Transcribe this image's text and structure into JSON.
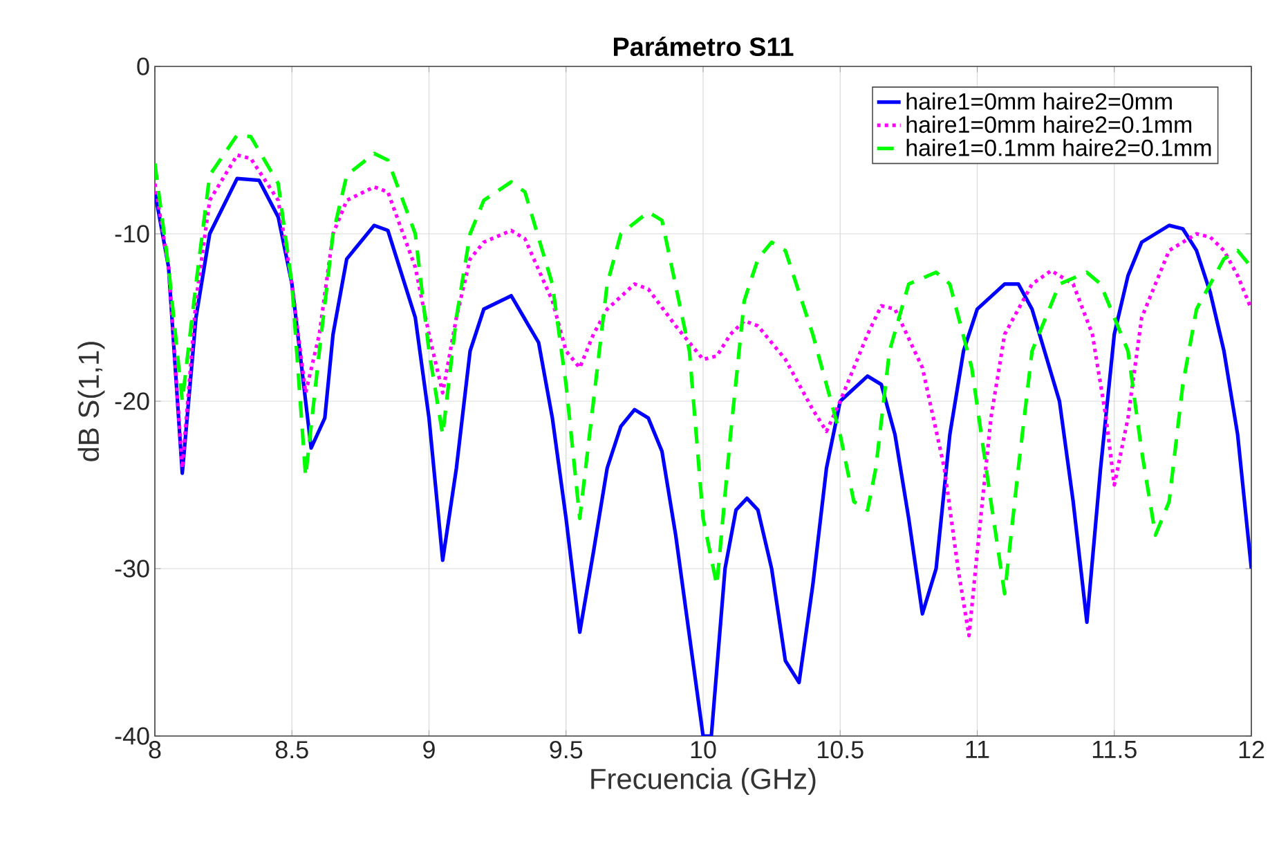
{
  "chart_data": {
    "type": "line",
    "title": "Parámetro S11",
    "xlabel": "Frecuencia (GHz)",
    "ylabel": "dB S(1,1)",
    "xlim": [
      8,
      12
    ],
    "ylim": [
      -40,
      0
    ],
    "xticks": [
      8,
      8.5,
      9,
      9.5,
      10,
      10.5,
      11,
      11.5,
      12
    ],
    "yticks": [
      -40,
      -30,
      -20,
      -10,
      0
    ],
    "grid": true,
    "legend": "top right",
    "series": [
      {
        "name": "haire1=0mm haire2=0mm",
        "color": "#0000ff",
        "line_style": "solid",
        "x": [
          8.0,
          8.05,
          8.1,
          8.15,
          8.2,
          8.3,
          8.38,
          8.45,
          8.5,
          8.55,
          8.57,
          8.62,
          8.65,
          8.7,
          8.8,
          8.85,
          8.95,
          9.0,
          9.05,
          9.1,
          9.15,
          9.2,
          9.3,
          9.4,
          9.45,
          9.5,
          9.55,
          9.6,
          9.65,
          9.7,
          9.75,
          9.8,
          9.85,
          9.9,
          9.95,
          10.0,
          10.03,
          10.08,
          10.12,
          10.16,
          10.2,
          10.25,
          10.3,
          10.35,
          10.4,
          10.45,
          10.5,
          10.6,
          10.65,
          10.7,
          10.75,
          10.8,
          10.85,
          10.9,
          10.95,
          11.0,
          11.1,
          11.15,
          11.2,
          11.3,
          11.35,
          11.4,
          11.45,
          11.5,
          11.55,
          11.6,
          11.7,
          11.75,
          11.8,
          11.85,
          11.9,
          11.95,
          12.0
        ],
        "values": [
          -7.5,
          -12,
          -24.3,
          -15,
          -10,
          -6.7,
          -6.8,
          -9,
          -13,
          -20,
          -22.8,
          -21,
          -16,
          -11.5,
          -9.5,
          -9.8,
          -15,
          -21,
          -29.5,
          -24,
          -17,
          -14.5,
          -13.7,
          -16.5,
          -21,
          -27,
          -33.8,
          -29,
          -24,
          -21.5,
          -20.5,
          -21,
          -23,
          -28,
          -34,
          -40,
          -40,
          -30,
          -26.5,
          -25.8,
          -26.5,
          -30,
          -35.5,
          -36.8,
          -31,
          -24,
          -20,
          -18.5,
          -19,
          -22,
          -27,
          -32.7,
          -30,
          -22,
          -17,
          -14.5,
          -13,
          -13,
          -14.5,
          -20,
          -26,
          -33.2,
          -24,
          -16,
          -12.5,
          -10.5,
          -9.5,
          -9.7,
          -11,
          -13.5,
          -17,
          -22,
          -30
        ]
      },
      {
        "name": "haire1=0mm haire2=0.1mm",
        "color": "#ff00ff",
        "line_style": "dotted",
        "x": [
          8.0,
          8.05,
          8.1,
          8.15,
          8.2,
          8.3,
          8.35,
          8.45,
          8.5,
          8.55,
          8.6,
          8.65,
          8.7,
          8.8,
          8.85,
          8.95,
          9.0,
          9.05,
          9.1,
          9.15,
          9.2,
          9.3,
          9.35,
          9.45,
          9.5,
          9.55,
          9.6,
          9.65,
          9.75,
          9.8,
          9.9,
          10.0,
          10.05,
          10.1,
          10.15,
          10.2,
          10.3,
          10.4,
          10.45,
          10.5,
          10.6,
          10.65,
          10.7,
          10.8,
          10.88,
          10.93,
          10.97,
          11.0,
          11.05,
          11.1,
          11.2,
          11.27,
          11.35,
          11.42,
          11.47,
          11.5,
          11.55,
          11.6,
          11.7,
          11.8,
          11.85,
          11.9,
          11.95,
          12.0
        ],
        "values": [
          -7,
          -12,
          -24,
          -14,
          -8,
          -5.3,
          -5.5,
          -8,
          -13,
          -19.5,
          -16,
          -10,
          -8,
          -7.2,
          -7.5,
          -12,
          -16,
          -19.5,
          -15,
          -11.5,
          -10.5,
          -9.8,
          -10.3,
          -14,
          -17,
          -18,
          -16,
          -14.5,
          -13,
          -13.3,
          -15.5,
          -17.5,
          -17.3,
          -16,
          -15.2,
          -15.5,
          -17.5,
          -20.5,
          -21.8,
          -20,
          -16,
          -14.3,
          -14.5,
          -18,
          -24,
          -30,
          -34,
          -29,
          -21,
          -16,
          -13,
          -12.2,
          -13,
          -16,
          -21,
          -25,
          -21,
          -15,
          -11,
          -10,
          -10.2,
          -11,
          -12.5,
          -14.5
        ]
      },
      {
        "name": "haire1=0.1mm haire2=0.1mm",
        "color": "#00ff00",
        "line_style": "dashed",
        "x": [
          8.0,
          8.05,
          8.1,
          8.15,
          8.2,
          8.3,
          8.35,
          8.45,
          8.5,
          8.55,
          8.6,
          8.65,
          8.7,
          8.8,
          8.85,
          8.95,
          9.0,
          9.05,
          9.1,
          9.15,
          9.2,
          9.3,
          9.35,
          9.45,
          9.5,
          9.55,
          9.6,
          9.65,
          9.7,
          9.8,
          9.85,
          9.95,
          10.0,
          10.05,
          10.1,
          10.15,
          10.2,
          10.25,
          10.3,
          10.4,
          10.5,
          10.55,
          10.6,
          10.63,
          10.68,
          10.75,
          10.85,
          10.9,
          10.98,
          11.05,
          11.1,
          11.15,
          11.2,
          11.3,
          11.4,
          11.45,
          11.55,
          11.6,
          11.65,
          11.7,
          11.75,
          11.8,
          11.9,
          11.95,
          12.0
        ],
        "values": [
          -5.8,
          -12,
          -20,
          -13,
          -6.5,
          -4.1,
          -4.2,
          -7,
          -13,
          -24.5,
          -17,
          -10,
          -6.5,
          -5.2,
          -5.6,
          -10,
          -17,
          -22,
          -15,
          -10,
          -8,
          -6.9,
          -7.5,
          -13,
          -19,
          -27,
          -20,
          -13,
          -10,
          -8.7,
          -9.2,
          -17,
          -27,
          -31,
          -22,
          -14,
          -11.5,
          -10.5,
          -11,
          -16,
          -22,
          -26,
          -26.5,
          -24,
          -17,
          -13,
          -12.3,
          -13,
          -18,
          -26,
          -31.5,
          -24,
          -17,
          -13,
          -12.3,
          -13,
          -17,
          -23,
          -28,
          -26,
          -19,
          -14.5,
          -11.5,
          -11,
          -12
        ]
      }
    ]
  }
}
